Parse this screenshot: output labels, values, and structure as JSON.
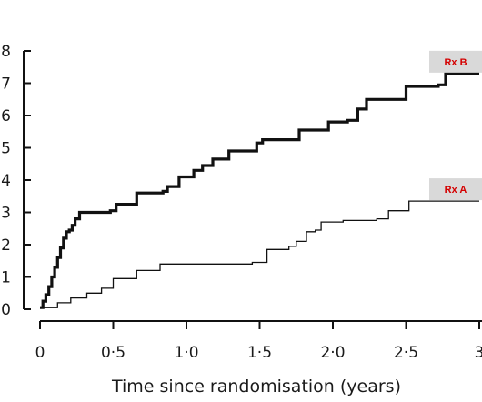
{
  "chart_data": {
    "type": "line",
    "step": true,
    "xlabel": "Time since randomisation (years)",
    "ylabel": "",
    "xlim": [
      0,
      3
    ],
    "ylim": [
      0,
      8
    ],
    "x_ticks": [
      0,
      0.5,
      1.0,
      1.5,
      2.0,
      2.5,
      3.0
    ],
    "x_tick_labels": [
      "0",
      "0·5",
      "1·0",
      "1·5",
      "2·0",
      "2·5",
      "3"
    ],
    "y_ticks": [
      0,
      1,
      2,
      3,
      4,
      5,
      6,
      7,
      8
    ],
    "y_tick_labels": [
      "0",
      "1",
      "2",
      "3",
      "4",
      "5",
      "6",
      "7",
      "8"
    ],
    "grid": false,
    "series": [
      {
        "name": "Rx B",
        "line": "thick",
        "x": [
          0,
          0.02,
          0.04,
          0.06,
          0.08,
          0.1,
          0.12,
          0.14,
          0.16,
          0.18,
          0.2,
          0.22,
          0.24,
          0.27,
          0.48,
          0.52,
          0.66,
          0.84,
          0.87,
          0.95,
          1.05,
          1.11,
          1.18,
          1.29,
          1.48,
          1.52,
          1.77,
          1.97,
          2.1,
          2.17,
          2.23,
          2.5,
          2.72,
          2.77,
          3.0
        ],
        "y": [
          0.05,
          0.25,
          0.45,
          0.7,
          1.0,
          1.3,
          1.6,
          1.9,
          2.2,
          2.4,
          2.45,
          2.6,
          2.8,
          3.0,
          3.05,
          3.25,
          3.6,
          3.65,
          3.8,
          4.1,
          4.3,
          4.45,
          4.65,
          4.9,
          5.15,
          5.25,
          5.55,
          5.8,
          5.85,
          6.2,
          6.5,
          6.9,
          6.95,
          7.3,
          7.3
        ]
      },
      {
        "name": "Rx A",
        "line": "thin",
        "x": [
          0,
          0.12,
          0.21,
          0.32,
          0.42,
          0.5,
          0.66,
          0.82,
          1.45,
          1.55,
          1.7,
          1.75,
          1.82,
          1.88,
          1.92,
          2.07,
          2.3,
          2.38,
          2.52,
          3.0
        ],
        "y": [
          0.05,
          0.2,
          0.35,
          0.5,
          0.65,
          0.95,
          1.2,
          1.4,
          1.45,
          1.85,
          1.95,
          2.1,
          2.4,
          2.45,
          2.7,
          2.75,
          2.8,
          3.05,
          3.35,
          3.35
        ]
      }
    ],
    "legend": [
      {
        "label": "Rx B",
        "color": "#d40000",
        "box": "#d9d9d9"
      },
      {
        "label": "Rx A",
        "color": "#d40000",
        "box": "#d9d9d9"
      }
    ]
  }
}
